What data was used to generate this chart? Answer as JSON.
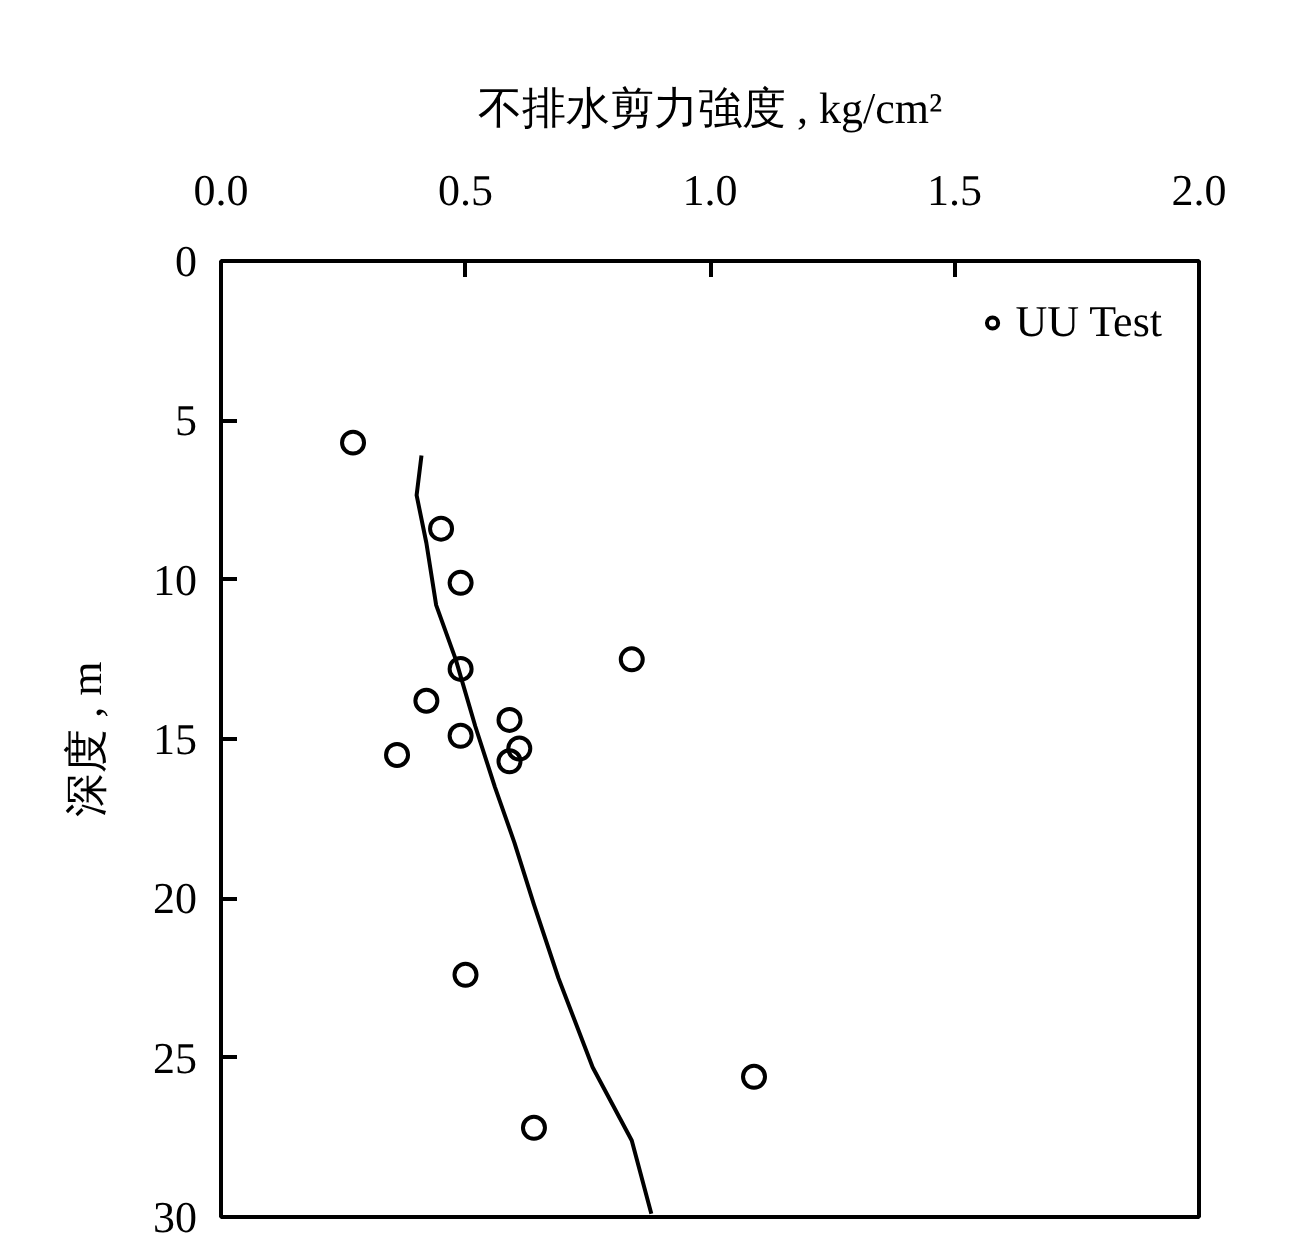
{
  "chart_data": {
    "type": "scatter",
    "xlabel": "不排水剪力強度 , kg/cm²",
    "ylabel": "深度 , m",
    "xlim": [
      0,
      2
    ],
    "xticks": [
      {
        "value": 0,
        "label": "0.0"
      },
      {
        "value": 0.5,
        "label": "0.5"
      },
      {
        "value": 1,
        "label": "1.0"
      },
      {
        "value": 1.5,
        "label": "1.5"
      },
      {
        "value": 2,
        "label": "2.0"
      }
    ],
    "ylim": [
      30,
      0
    ],
    "yticks": [
      0,
      5,
      10,
      15,
      20,
      25,
      30
    ],
    "grid": false,
    "legend": "top right",
    "series": [
      {
        "name": "UU Test",
        "marker": "circle",
        "color": "#000000",
        "x": [
          0.27,
          0.45,
          0.49,
          0.49,
          0.84,
          0.42,
          0.36,
          0.49,
          0.59,
          0.61,
          0.59,
          0.5,
          0.64,
          1.09
        ],
        "values": [
          5.7,
          8.4,
          10.1,
          12.8,
          12.5,
          13.8,
          15.5,
          14.9,
          14.4,
          15.3,
          15.7,
          22.4,
          27.2,
          25.6
        ]
      },
      {
        "type": "line",
        "color": "#000000",
        "line_style": "solid",
        "x": [
          0.41,
          0.4,
          0.42,
          0.44,
          0.48,
          0.52,
          0.56,
          0.6,
          0.64,
          0.69,
          0.76,
          0.84,
          0.88
        ],
        "values": [
          6.1,
          7.35,
          8.85,
          10.8,
          12.5,
          14.6,
          16.5,
          18.25,
          20.2,
          22.5,
          25.3,
          27.6,
          29.9
        ]
      }
    ]
  }
}
